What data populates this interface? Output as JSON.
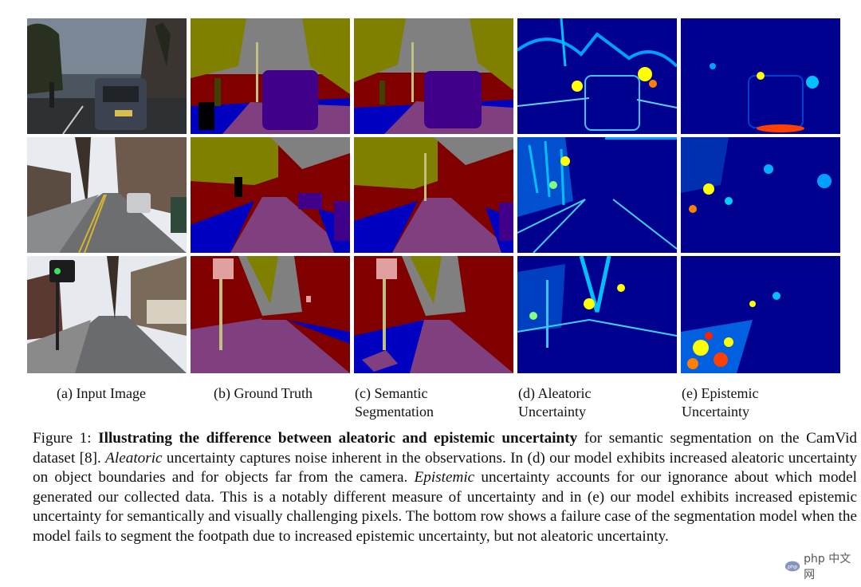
{
  "subfigure_labels": [
    {
      "line1": "(a) Input Image",
      "line2": ""
    },
    {
      "line1": "(b) Ground Truth",
      "line2": ""
    },
    {
      "line1": "(c) Semantic",
      "line2": "Segmentation"
    },
    {
      "line1": "(d) Aleatoric",
      "line2": "Uncertainty"
    },
    {
      "line1": "(e) Epistemic",
      "line2": "Uncertainty"
    }
  ],
  "caption": {
    "prefix": "Figure 1: ",
    "bold_title": "Illustrating the difference between aleatoric and epistemic uncertainty",
    "part1": " for semantic segmentation on the CamVid dataset [8]. ",
    "italic1": "Aleatoric",
    "part2": " uncertainty captures noise inherent in the observations. In (d) our model exhibits increased aleatoric uncertainty on object boundaries and for objects far from the camera. ",
    "italic2": "Epistemic",
    "part3": " uncertainty accounts for our ignorance about which model generated our collected data.  This is a notably different measure of uncertainty and in (e) our model exhibits increased epistemic uncertainty for semantically and visually challenging pixels.  The bottom row shows a failure case of the segmentation model when the model fails to segment the footpath due to increased epistemic uncertainty, but not aleatoric uncertainty."
  },
  "watermark": {
    "text": "php 中文网"
  },
  "colors": {
    "sky": "#808080",
    "tree": "#808000",
    "building": "#800000",
    "road": "#804080",
    "sidewalk": "#0000c0",
    "car": "#40008a",
    "pole": "#c0c080",
    "heat_bg": "#00008f",
    "heat_mid": "#00a0ff",
    "heat_hot": "#ffff00"
  }
}
